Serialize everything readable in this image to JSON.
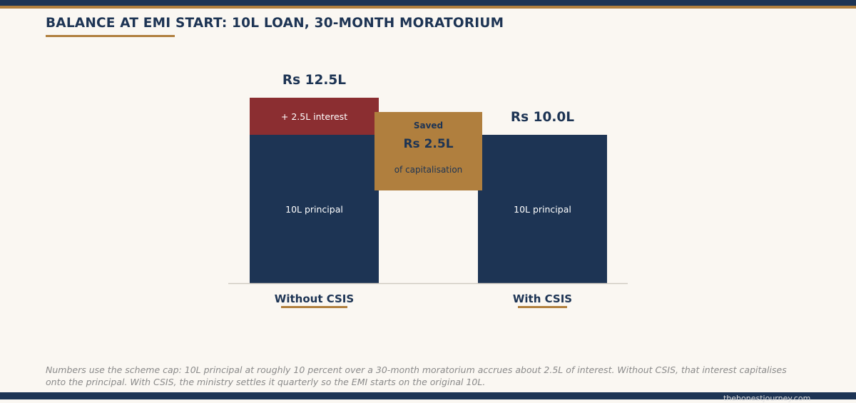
{
  "title": "BALANCE AT EMI START: 10L LOAN, 30-MONTH MORATORIUM",
  "colors": {
    "navy": "#1d3454",
    "gold": "#b07f3e",
    "red": "#8b2e31",
    "background": "#faf7f2"
  },
  "chart_data": {
    "type": "bar",
    "stacked": true,
    "unit": "Rs lakh",
    "categories": [
      "Without CSIS",
      "With CSIS"
    ],
    "series": [
      {
        "key": "principal",
        "values": [
          10.0,
          10.0
        ],
        "labels": [
          "10L principal",
          "10L principal"
        ]
      },
      {
        "key": "interest",
        "values": [
          2.5,
          0
        ],
        "labels": [
          "+ 2.5L interest",
          ""
        ]
      }
    ],
    "totals": [
      12.5,
      10.0
    ],
    "total_labels": [
      "Rs 12.5L",
      "Rs 10.0L"
    ],
    "callout": {
      "heading": "Saved",
      "value": 2.5,
      "value_label": "Rs 2.5L",
      "subtext": "of capitalisation"
    },
    "ylim": [
      0,
      12.5
    ],
    "grid": false,
    "legend": "none"
  },
  "caption": "Numbers use the scheme cap: 10L principal at roughly 10 percent over a 30-month moratorium accrues about 2.5L of interest. Without CSIS, that interest capitalises onto the principal. With CSIS, the ministry settles it quarterly so the EMI starts on the original 10L.",
  "watermark": "thehonestjourney.com"
}
